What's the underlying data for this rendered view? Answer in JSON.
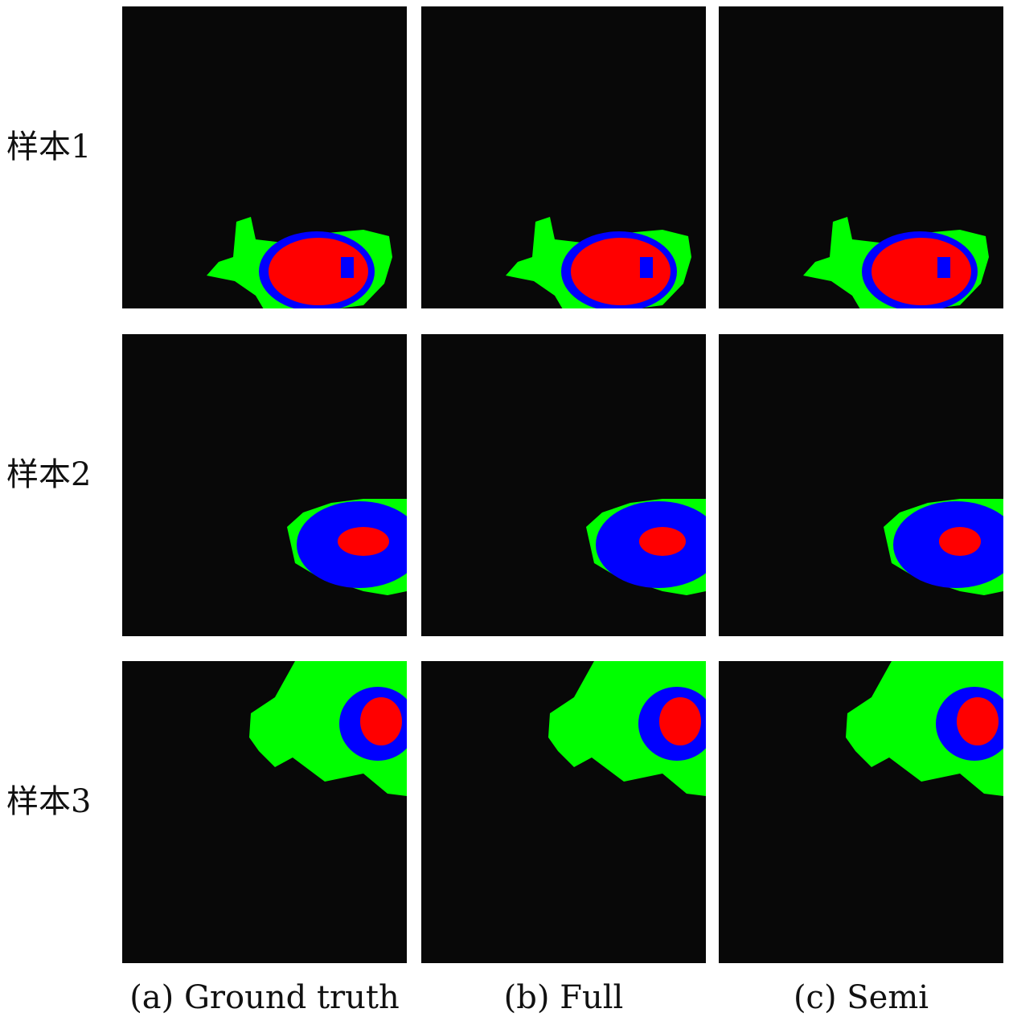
{
  "row_labels": [
    "样本1",
    "样本2",
    "样本3"
  ],
  "column_captions": [
    "(a) Ground truth",
    "(b) Full",
    "(c) Semi"
  ]
}
